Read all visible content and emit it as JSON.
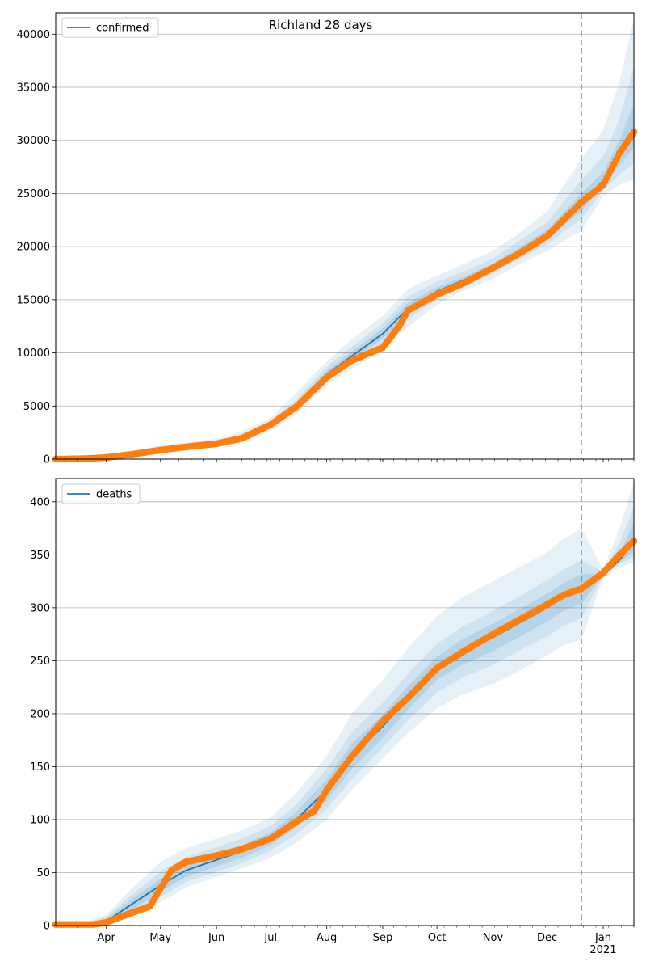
{
  "figure": {
    "title": "Richland 28 days",
    "background": "#ffffff",
    "grid_color": "#b0b0b0",
    "band_color": "#1f77b4",
    "model_color": "#1f77b4",
    "observed_color": "#ff7f0e",
    "vline_color": "#1f77b4"
  },
  "chart_data": [
    {
      "type": "line",
      "panel": "top",
      "title": "Richland 28 days",
      "legend": {
        "label": "confirmed",
        "placement": "upper-left"
      },
      "grid": "horizontal",
      "xlim": [
        "2020-03-04",
        "2021-01-18"
      ],
      "ylim": [
        0,
        42000
      ],
      "yticks": [
        0,
        5000,
        10000,
        15000,
        20000,
        25000,
        30000,
        35000,
        40000
      ],
      "xticks": [
        {
          "date": "2020-04-01",
          "label": "Apr"
        },
        {
          "date": "2020-05-01",
          "label": "May"
        },
        {
          "date": "2020-06-01",
          "label": "Jun"
        },
        {
          "date": "2020-07-01",
          "label": "Jul"
        },
        {
          "date": "2020-08-01",
          "label": "Aug"
        },
        {
          "date": "2020-09-01",
          "label": "Sep"
        },
        {
          "date": "2020-10-01",
          "label": "Oct"
        },
        {
          "date": "2020-11-01",
          "label": "Nov"
        },
        {
          "date": "2020-12-01",
          "label": "Dec"
        },
        {
          "date": "2021-01-01",
          "label": "Jan\n2021"
        }
      ],
      "forecast_start": "2020-12-20",
      "observed_end": "2021-01-18",
      "model": {
        "dates": [
          "2020-03-04",
          "2020-03-20",
          "2020-04-01",
          "2020-04-15",
          "2020-05-01",
          "2020-05-15",
          "2020-06-01",
          "2020-06-15",
          "2020-07-01",
          "2020-07-15",
          "2020-08-01",
          "2020-08-15",
          "2020-09-01",
          "2020-09-15",
          "2020-10-01",
          "2020-10-15",
          "2020-11-01",
          "2020-11-15",
          "2020-12-01",
          "2020-12-10",
          "2020-12-20",
          "2021-01-01",
          "2021-01-10",
          "2021-01-18"
        ],
        "values": [
          0,
          30,
          150,
          500,
          900,
          1200,
          1500,
          2000,
          3200,
          5000,
          8000,
          9700,
          11800,
          14200,
          15800,
          16800,
          18100,
          19500,
          21100,
          22600,
          24200,
          26200,
          28600,
          31000
        ]
      },
      "bands": [
        {
          "level": "outer",
          "lower": [
            0,
            0,
            80,
            300,
            600,
            900,
            1200,
            1600,
            2700,
            4200,
            7000,
            8500,
            10200,
            12500,
            14500,
            15800,
            17000,
            18300,
            19600,
            20500,
            21500,
            24800,
            25800,
            26300
          ],
          "upper": [
            100,
            100,
            250,
            750,
            1300,
            1600,
            1900,
            2600,
            3900,
            6200,
            9200,
            11300,
            13500,
            16000,
            17300,
            18300,
            19600,
            21200,
            23300,
            25700,
            28300,
            31000,
            35500,
            41500
          ]
        },
        {
          "level": "middle",
          "lower": [
            0,
            10,
            110,
            380,
            700,
            1020,
            1320,
            1750,
            2900,
            4550,
            7400,
            9000,
            10900,
            13200,
            15000,
            16200,
            17500,
            18800,
            20200,
            21400,
            22600,
            25300,
            26800,
            27800
          ],
          "upper": [
            60,
            60,
            200,
            640,
            1120,
            1420,
            1720,
            2350,
            3600,
            5600,
            8700,
            10600,
            12800,
            15300,
            16700,
            17600,
            18900,
            20500,
            22300,
            24200,
            26300,
            28500,
            32000,
            37000
          ]
        },
        {
          "level": "inner",
          "lower": [
            0,
            20,
            130,
            440,
            800,
            1100,
            1420,
            1880,
            3050,
            4780,
            7700,
            9350,
            11350,
            13700,
            15400,
            16500,
            17800,
            19150,
            20650,
            22000,
            23400,
            25700,
            27700,
            29300
          ],
          "upper": [
            40,
            40,
            170,
            560,
            1000,
            1300,
            1600,
            2150,
            3380,
            5250,
            8300,
            10100,
            12300,
            14700,
            16200,
            17100,
            18400,
            19850,
            21600,
            23200,
            25000,
            27000,
            30000,
            33500
          ]
        }
      ],
      "observed": {
        "dates": [
          "2020-03-04",
          "2020-03-20",
          "2020-04-01",
          "2020-04-15",
          "2020-05-01",
          "2020-05-15",
          "2020-06-01",
          "2020-06-15",
          "2020-07-01",
          "2020-07-15",
          "2020-08-01",
          "2020-08-15",
          "2020-09-01",
          "2020-09-10",
          "2020-09-15",
          "2020-10-01",
          "2020-10-15",
          "2020-11-01",
          "2020-11-15",
          "2020-12-01",
          "2020-12-10",
          "2020-12-20",
          "2021-01-01",
          "2021-01-10",
          "2021-01-18"
        ],
        "values": [
          0,
          40,
          150,
          450,
          850,
          1150,
          1450,
          1950,
          3250,
          4900,
          7700,
          9300,
          10500,
          12500,
          14000,
          15500,
          16500,
          18000,
          19300,
          21000,
          22500,
          24200,
          25800,
          28800,
          30800
        ]
      }
    },
    {
      "type": "line",
      "panel": "bottom",
      "legend": {
        "label": "deaths",
        "placement": "upper-left"
      },
      "grid": "horizontal",
      "xlim": [
        "2020-03-04",
        "2021-01-18"
      ],
      "ylim": [
        0,
        422
      ],
      "yticks": [
        0,
        50,
        100,
        150,
        200,
        250,
        300,
        350,
        400
      ],
      "xticks": [
        {
          "date": "2020-04-01",
          "label": "Apr"
        },
        {
          "date": "2020-05-01",
          "label": "May"
        },
        {
          "date": "2020-06-01",
          "label": "Jun"
        },
        {
          "date": "2020-07-01",
          "label": "Jul"
        },
        {
          "date": "2020-08-01",
          "label": "Aug"
        },
        {
          "date": "2020-09-01",
          "label": "Sep"
        },
        {
          "date": "2020-10-01",
          "label": "Oct"
        },
        {
          "date": "2020-11-01",
          "label": "Nov"
        },
        {
          "date": "2020-12-01",
          "label": "Dec"
        },
        {
          "date": "2021-01-01",
          "label": "Jan\n2021"
        }
      ],
      "forecast_start": "2020-12-20",
      "observed_end": "2021-01-18",
      "model": {
        "dates": [
          "2020-03-04",
          "2020-03-20",
          "2020-04-01",
          "2020-04-15",
          "2020-05-01",
          "2020-05-15",
          "2020-06-01",
          "2020-06-15",
          "2020-07-01",
          "2020-07-15",
          "2020-08-01",
          "2020-08-15",
          "2020-09-01",
          "2020-09-15",
          "2020-10-01",
          "2020-10-15",
          "2020-11-01",
          "2020-11-15",
          "2020-12-01",
          "2020-12-10",
          "2020-12-20",
          "2021-01-01",
          "2021-01-10",
          "2021-01-18"
        ],
        "values": [
          0,
          0,
          4,
          20,
          38,
          52,
          62,
          70,
          82,
          100,
          128,
          160,
          188,
          215,
          243,
          258,
          272,
          285,
          300,
          310,
          318,
          330,
          345,
          362
        ]
      },
      "bands": [
        {
          "level": "outer",
          "lower": [
            0,
            0,
            1,
            8,
            22,
            36,
            46,
            54,
            64,
            78,
            100,
            128,
            158,
            182,
            205,
            218,
            228,
            240,
            255,
            265,
            270,
            328,
            338,
            343
          ],
          "upper": [
            3,
            3,
            10,
            35,
            60,
            73,
            82,
            90,
            102,
            125,
            160,
            200,
            232,
            262,
            292,
            310,
            325,
            338,
            352,
            365,
            375,
            336,
            375,
            418
          ]
        },
        {
          "level": "middle",
          "lower": [
            0,
            0,
            2,
            12,
            27,
            41,
            51,
            59,
            71,
            86,
            110,
            138,
            168,
            194,
            220,
            234,
            246,
            259,
            273,
            283,
            290,
            330,
            341,
            348
          ],
          "upper": [
            2,
            2,
            8,
            29,
            51,
            65,
            74,
            82,
            94,
            114,
            148,
            183,
            210,
            238,
            266,
            282,
            297,
            310,
            326,
            336,
            345,
            334,
            361,
            395
          ]
        },
        {
          "level": "inner",
          "lower": [
            0,
            0,
            3,
            15,
            32,
            46,
            56,
            64,
            76,
            93,
            118,
            148,
            177,
            204,
            232,
            246,
            259,
            272,
            287,
            297,
            304,
            331,
            343,
            353
          ],
          "upper": [
            1,
            1,
            6,
            25,
            44,
            58,
            68,
            76,
            88,
            107,
            138,
            172,
            199,
            226,
            254,
            270,
            285,
            298,
            313,
            323,
            332,
            332,
            351,
            380
          ]
        }
      ],
      "observed": {
        "dates": [
          "2020-03-04",
          "2020-03-25",
          "2020-04-01",
          "2020-04-15",
          "2020-04-25",
          "2020-05-01",
          "2020-05-07",
          "2020-05-15",
          "2020-06-01",
          "2020-06-15",
          "2020-07-01",
          "2020-07-15",
          "2020-07-25",
          "2020-08-01",
          "2020-08-15",
          "2020-09-01",
          "2020-09-15",
          "2020-10-01",
          "2020-10-15",
          "2020-11-01",
          "2020-11-15",
          "2020-12-01",
          "2020-12-10",
          "2020-12-20",
          "2021-01-01",
          "2021-01-10",
          "2021-01-18"
        ],
        "values": [
          1,
          1,
          3,
          12,
          18,
          35,
          52,
          60,
          66,
          72,
          82,
          98,
          108,
          128,
          160,
          193,
          215,
          243,
          258,
          275,
          288,
          303,
          312,
          318,
          333,
          350,
          363
        ]
      }
    }
  ]
}
